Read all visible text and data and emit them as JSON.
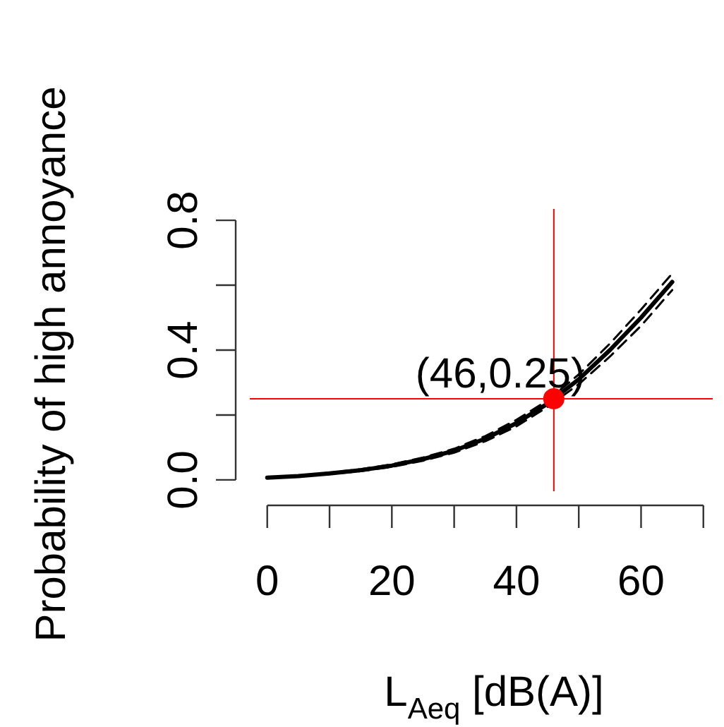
{
  "chart_data": {
    "type": "line",
    "xlabel": "L$_{Aeq}$ [dB(A)]",
    "ylabel": "Probability of high annoyance",
    "x": [
      0,
      5,
      10,
      15,
      20,
      25,
      30,
      35,
      40,
      45,
      50,
      55,
      60,
      65
    ],
    "xlim": [
      -2.8,
      71.5
    ],
    "ylim": [
      -0.035,
      0.835
    ],
    "xticks": [
      0,
      {
        "value": 10,
        "label": null
      },
      20,
      {
        "value": 30,
        "label": null
      },
      40,
      {
        "value": 50,
        "label": null
      },
      60,
      {
        "value": 70,
        "label": null
      }
    ],
    "yticks": [
      {
        "value": 0,
        "label": "0.0"
      },
      {
        "value": 0.2,
        "label": null
      },
      {
        "value": 0.4,
        "label": "0.4"
      },
      {
        "value": 0.6,
        "label": null
      },
      {
        "value": 0.8,
        "label": "0.8"
      }
    ],
    "series": [
      {
        "color": "#000000",
        "line_style": "solid",
        "marker": "none",
        "values": [
          0.007,
          0.012,
          0.02,
          0.03,
          0.044,
          0.064,
          0.09,
          0.127,
          0.175,
          0.235,
          0.31,
          0.4,
          0.5,
          0.61
        ]
      },
      {
        "type": "line",
        "color": "#000000",
        "line_style": "dashed",
        "marker": "none",
        "values": [
          0.006,
          0.011,
          0.018,
          0.027,
          0.04,
          0.059,
          0.084,
          0.119,
          0.165,
          0.225,
          0.295,
          0.38,
          0.475,
          0.585
        ]
      },
      {
        "type": "line",
        "color": "#000000",
        "line_style": "dashed",
        "marker": "none",
        "values": [
          0.008,
          0.013,
          0.022,
          0.033,
          0.048,
          0.069,
          0.096,
          0.135,
          0.185,
          0.245,
          0.325,
          0.42,
          0.525,
          0.636
        ]
      },
      {
        "type": "scatter",
        "color": "#ff0000",
        "marker": "circle",
        "x": [
          46
        ],
        "values": [
          0.25
        ]
      }
    ],
    "ref_lines": [
      {
        "axis": "x",
        "value": 46,
        "color": "#ff0000"
      },
      {
        "axis": "y",
        "value": 0.25,
        "color": "#ff0000"
      }
    ],
    "annotations": [
      {
        "text": "(46,0.25)",
        "x": 46,
        "y": 0.25
      }
    ],
    "grid": false,
    "legend": false
  }
}
